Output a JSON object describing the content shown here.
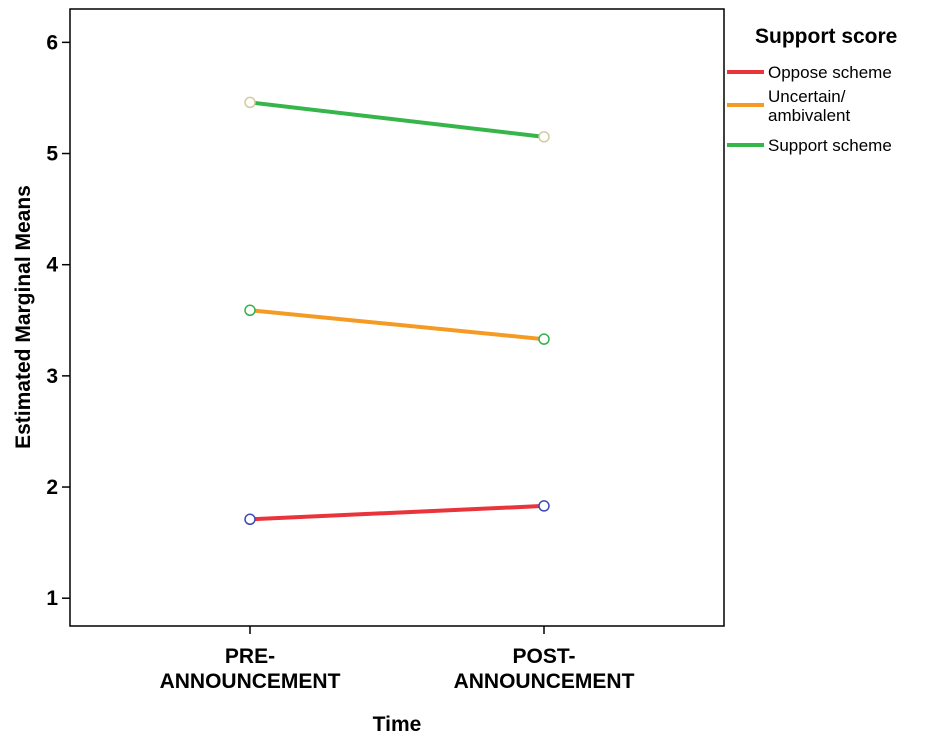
{
  "chart_data": {
    "type": "line",
    "xlabel": "Time",
    "ylabel": "Estimated Marginal Means",
    "categories": [
      [
        "PRE-",
        "ANNOUNCEMENT"
      ],
      [
        "POST-",
        "ANNOUNCEMENT"
      ]
    ],
    "ylim": [
      0.75,
      6.3
    ],
    "yticks": [
      1,
      2,
      3,
      4,
      5,
      6
    ],
    "grid": false,
    "legend": {
      "title": "Support score",
      "placement": "right"
    },
    "series": [
      {
        "name": "Oppose scheme",
        "legend_lines": [
          "Oppose scheme"
        ],
        "color": "#e8343a",
        "marker_color": "#3b4bb5",
        "values": [
          1.71,
          1.83
        ]
      },
      {
        "name": "Uncertain/ ambivalent",
        "legend_lines": [
          "Uncertain/",
          "ambivalent"
        ],
        "color": "#f59a23",
        "marker_color": "#33b24a",
        "values": [
          3.59,
          3.33
        ]
      },
      {
        "name": "Support scheme",
        "legend_lines": [
          "Support scheme"
        ],
        "color": "#35b54a",
        "marker_color": "#d6c9a0",
        "values": [
          5.46,
          5.15
        ]
      }
    ]
  }
}
